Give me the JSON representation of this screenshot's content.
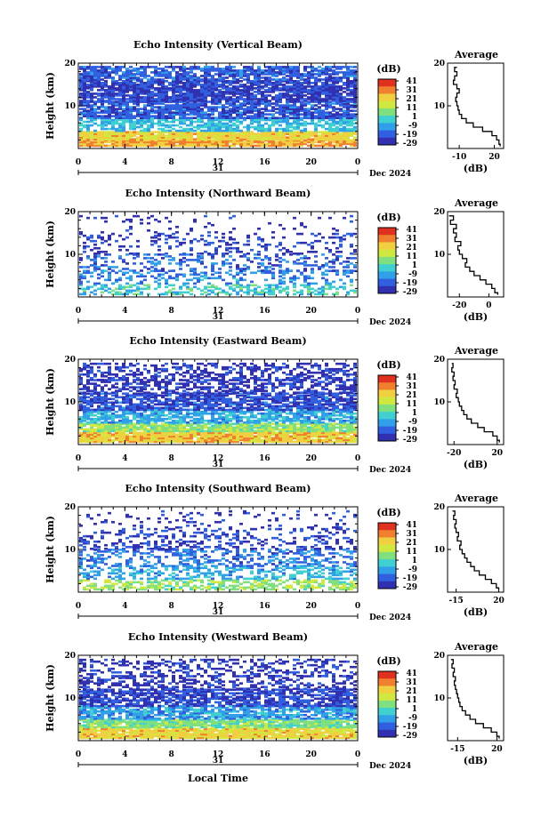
{
  "figure": {
    "xlabel": "Local Time",
    "day": "31",
    "month_year": "Dec 2024",
    "colorbar_label": "(dB)",
    "colorbar_ticks": [
      "41",
      "31",
      "21",
      "11",
      "1",
      "-9",
      "-19",
      "-29"
    ],
    "colors": {
      "colorbar": [
        "#e03020",
        "#f08030",
        "#f0d040",
        "#d0e840",
        "#80e080",
        "#40d0d0",
        "#30a0e8",
        "#3060e0",
        "#3030b0"
      ],
      "frame": "#000000"
    }
  },
  "chart_data": [
    {
      "type": "heatmap",
      "title": "Echo Intensity (Vertical Beam)",
      "ylabel": "Height (km)",
      "xlim": [
        0,
        24
      ],
      "ylim": [
        0,
        20
      ],
      "x_ticks": [
        "0",
        "4",
        "8",
        "12",
        "16",
        "20",
        "0"
      ],
      "y_ticks": [
        "20",
        "10"
      ],
      "zlim": [
        -29,
        41
      ],
      "layers": [
        {
          "from": 0.5,
          "to": 2,
          "value": 25,
          "coverage": 0.95
        },
        {
          "from": 2,
          "to": 4,
          "value": 20,
          "coverage": 0.95
        },
        {
          "from": 4,
          "to": 7,
          "value": -5,
          "coverage": 0.7
        },
        {
          "from": 7,
          "to": 11,
          "value": -19,
          "coverage": 0.8
        },
        {
          "from": 11,
          "to": 16,
          "value": -22,
          "coverage": 0.85
        },
        {
          "from": 16,
          "to": 19,
          "value": -18,
          "coverage": 0.75
        }
      ],
      "profile": {
        "title": "Average",
        "xlabel": "(dB)",
        "x_ticks": [
          "-10",
          "20"
        ],
        "xlim": [
          -20,
          28
        ],
        "heights": [
          0.5,
          1,
          2,
          3,
          4,
          5,
          6,
          7,
          8,
          9,
          10,
          11,
          12,
          13,
          14,
          15,
          16,
          17,
          18,
          19
        ],
        "values": [
          25,
          24,
          22,
          18,
          10,
          2,
          -4,
          -8,
          -10,
          -11,
          -12,
          -13,
          -12,
          -10,
          -12,
          -15,
          -14,
          -12,
          -14,
          -12
        ]
      }
    },
    {
      "type": "heatmap",
      "title": "Echo Intensity (Northward Beam)",
      "ylabel": "Height (km)",
      "xlim": [
        0,
        24
      ],
      "ylim": [
        0,
        20
      ],
      "x_ticks": [
        "0",
        "4",
        "8",
        "12",
        "16",
        "20",
        "0"
      ],
      "y_ticks": [
        "20",
        "10"
      ],
      "zlim": [
        -29,
        41
      ],
      "layers": [
        {
          "from": 0.5,
          "to": 3,
          "value": -2,
          "coverage": 0.45
        },
        {
          "from": 3,
          "to": 6,
          "value": -12,
          "coverage": 0.35
        },
        {
          "from": 6,
          "to": 10,
          "value": -17,
          "coverage": 0.3
        },
        {
          "from": 10,
          "to": 15,
          "value": -22,
          "coverage": 0.22
        },
        {
          "from": 15,
          "to": 19,
          "value": -25,
          "coverage": 0.08
        }
      ],
      "profile": {
        "title": "Average",
        "xlabel": "(dB)",
        "x_ticks": [
          "-20",
          "0"
        ],
        "xlim": [
          -28,
          10
        ],
        "heights": [
          0.5,
          1,
          2,
          3,
          4,
          5,
          6,
          7,
          8,
          9,
          10,
          11,
          12,
          13,
          14,
          15,
          16,
          17,
          18,
          19
        ],
        "values": [
          6,
          4,
          2,
          -2,
          -6,
          -10,
          -13,
          -16,
          -15,
          -18,
          -20,
          -21,
          -19,
          -23,
          -22,
          -24,
          -22,
          -26,
          -24,
          -27
        ]
      }
    },
    {
      "type": "heatmap",
      "title": "Echo Intensity (Eastward Beam)",
      "ylabel": "Height (km)",
      "xlim": [
        0,
        24
      ],
      "ylim": [
        0,
        20
      ],
      "x_ticks": [
        "0",
        "4",
        "8",
        "12",
        "16",
        "20",
        "0"
      ],
      "y_ticks": [
        "20",
        "10"
      ],
      "zlim": [
        -29,
        41
      ],
      "layers": [
        {
          "from": 0.5,
          "to": 3,
          "value": 22,
          "coverage": 0.95
        },
        {
          "from": 3,
          "to": 5,
          "value": 8,
          "coverage": 0.9
        },
        {
          "from": 5,
          "to": 8,
          "value": -8,
          "coverage": 0.75
        },
        {
          "from": 8,
          "to": 12,
          "value": -20,
          "coverage": 0.8
        },
        {
          "from": 12,
          "to": 15,
          "value": -24,
          "coverage": 0.55
        },
        {
          "from": 15,
          "to": 19,
          "value": -24,
          "coverage": 0.45
        }
      ],
      "profile": {
        "title": "Average",
        "xlabel": "(dB)",
        "x_ticks": [
          "-20",
          "20"
        ],
        "xlim": [
          -26,
          26
        ],
        "heights": [
          0.5,
          1,
          2,
          3,
          4,
          5,
          6,
          7,
          8,
          9,
          10,
          11,
          12,
          13,
          14,
          15,
          16,
          17,
          18,
          19
        ],
        "values": [
          22,
          20,
          16,
          8,
          2,
          -4,
          -8,
          -11,
          -13,
          -15,
          -16,
          -18,
          -17,
          -20,
          -19,
          -21,
          -20,
          -22,
          -21,
          -22
        ]
      }
    },
    {
      "type": "heatmap",
      "title": "Echo Intensity (Southward Beam)",
      "ylabel": "Height (km)",
      "xlim": [
        0,
        24
      ],
      "ylim": [
        0,
        20
      ],
      "x_ticks": [
        "0",
        "4",
        "8",
        "12",
        "16",
        "20",
        "0"
      ],
      "y_ticks": [
        "20",
        "10"
      ],
      "zlim": [
        -29,
        41
      ],
      "layers": [
        {
          "from": 0.5,
          "to": 3,
          "value": 8,
          "coverage": 0.55
        },
        {
          "from": 3,
          "to": 6,
          "value": -8,
          "coverage": 0.45
        },
        {
          "from": 6,
          "to": 10,
          "value": -15,
          "coverage": 0.4
        },
        {
          "from": 10,
          "to": 15,
          "value": -21,
          "coverage": 0.3
        },
        {
          "from": 15,
          "to": 19,
          "value": -24,
          "coverage": 0.12
        }
      ],
      "profile": {
        "title": "Average",
        "xlabel": "(dB)",
        "x_ticks": [
          "-15",
          "20"
        ],
        "xlim": [
          -22,
          24
        ],
        "heights": [
          0.5,
          1,
          2,
          3,
          4,
          5,
          6,
          7,
          8,
          9,
          10,
          11,
          12,
          13,
          14,
          15,
          16,
          17,
          18,
          19
        ],
        "values": [
          20,
          18,
          14,
          9,
          4,
          0,
          -3,
          -6,
          -8,
          -10,
          -12,
          -11,
          -14,
          -13,
          -15,
          -16,
          -15,
          -17,
          -16,
          -18
        ]
      }
    },
    {
      "type": "heatmap",
      "title": "Echo Intensity (Westward Beam)",
      "ylabel": "Height (km)",
      "xlim": [
        0,
        24
      ],
      "ylim": [
        0,
        20
      ],
      "x_ticks": [
        "0",
        "4",
        "8",
        "12",
        "16",
        "20",
        "0"
      ],
      "y_ticks": [
        "20",
        "10"
      ],
      "zlim": [
        -29,
        41
      ],
      "layers": [
        {
          "from": 0.5,
          "to": 3,
          "value": 20,
          "coverage": 0.95
        },
        {
          "from": 3,
          "to": 5,
          "value": 6,
          "coverage": 0.9
        },
        {
          "from": 5,
          "to": 8,
          "value": -10,
          "coverage": 0.75
        },
        {
          "from": 8,
          "to": 12,
          "value": -21,
          "coverage": 0.75
        },
        {
          "from": 12,
          "to": 15,
          "value": -25,
          "coverage": 0.4
        },
        {
          "from": 15,
          "to": 19,
          "value": -24,
          "coverage": 0.35
        }
      ],
      "profile": {
        "title": "Average",
        "xlabel": "(dB)",
        "x_ticks": [
          "-15",
          "20"
        ],
        "xlim": [
          -24,
          26
        ],
        "heights": [
          0.5,
          1,
          2,
          3,
          4,
          5,
          6,
          7,
          8,
          9,
          10,
          11,
          12,
          13,
          14,
          15,
          16,
          17,
          18,
          19
        ],
        "values": [
          22,
          20,
          15,
          8,
          1,
          -4,
          -8,
          -11,
          -13,
          -14,
          -15,
          -16,
          -17,
          -18,
          -17,
          -19,
          -18,
          -20,
          -19,
          -21
        ]
      }
    }
  ]
}
